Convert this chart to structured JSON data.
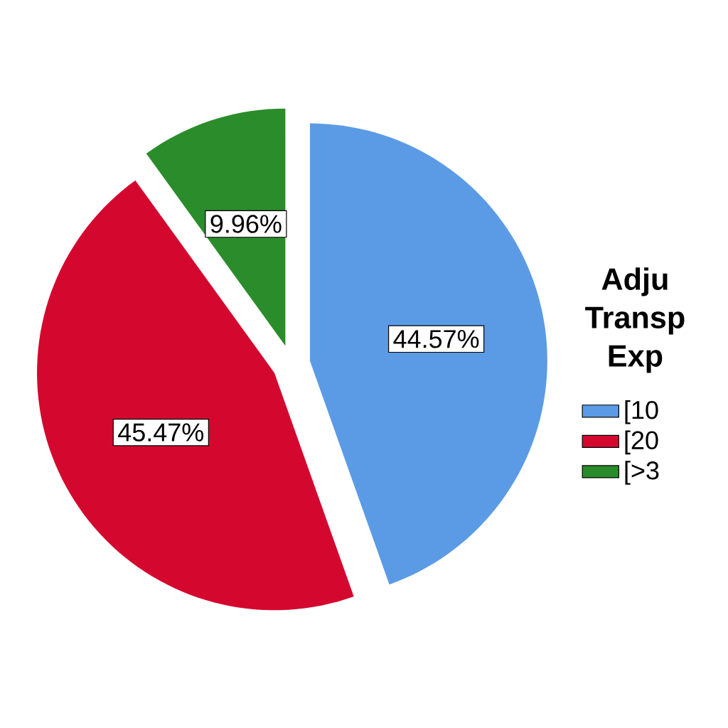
{
  "chart_data": {
    "type": "pie",
    "legend_title": "Adju Transp Exp",
    "categories": [
      "[10",
      "[20",
      "[>3"
    ],
    "values": [
      44.57,
      45.47,
      9.96
    ],
    "colors": [
      "#5b9be6",
      "#d4082f",
      "#2a8c2a"
    ],
    "value_labels": [
      "44.57%",
      "45.47%",
      "9.96%"
    ],
    "legend": "right"
  }
}
